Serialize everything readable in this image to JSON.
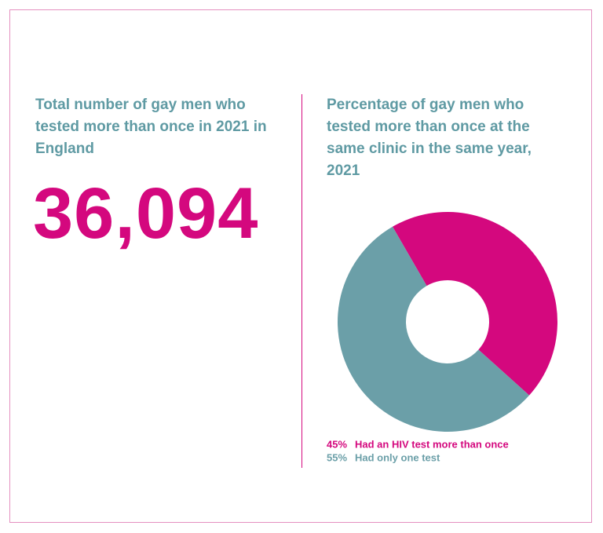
{
  "stat": {
    "title": "Total number of gay men who tested more than once in 2021 in England",
    "value": "36,094"
  },
  "chart_data": {
    "type": "donut",
    "title": "Percentage of gay men who tested more than once at the same clinic in the same year, 2021",
    "categories": [
      "Had an HIV test more than once",
      "Had only one test"
    ],
    "values": [
      45,
      55
    ],
    "value_labels": [
      "45%",
      "55%"
    ],
    "colors": [
      "#d4087e",
      "#6b9fa8"
    ]
  }
}
